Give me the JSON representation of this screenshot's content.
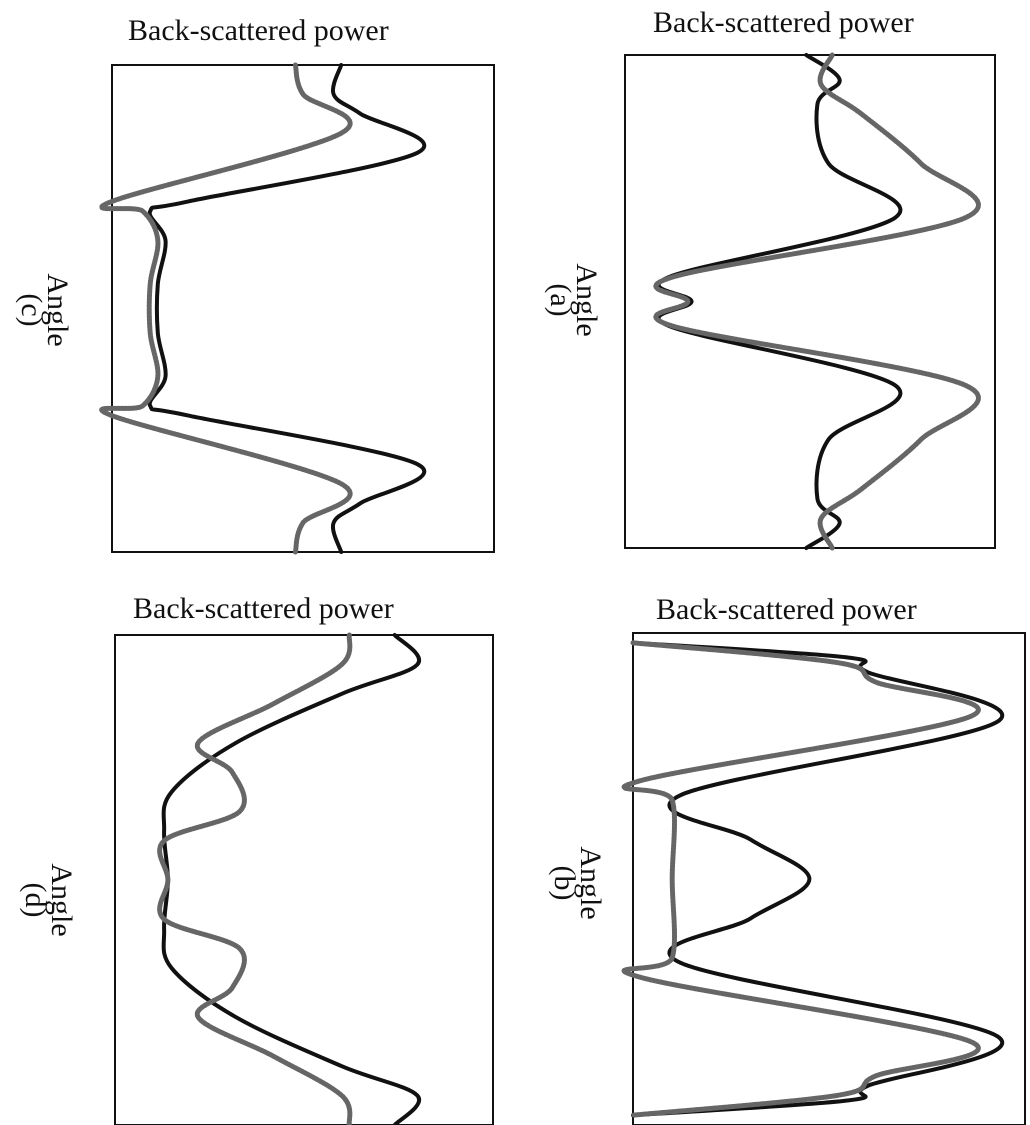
{
  "chart_data": [
    {
      "id": "a",
      "type": "line",
      "title": "Back-scattered power",
      "xlabel": "Angle",
      "panel_label": "(a)",
      "series": [
        {
          "style": "solid",
          "color": "#111111",
          "points": [
            [
              0.0,
              0.49
            ],
            [
              0.05,
              0.58
            ],
            [
              0.1,
              0.52
            ],
            [
              0.22,
              0.55
            ],
            [
              0.33,
              0.73
            ],
            [
              0.45,
              0.12
            ],
            [
              0.5,
              0.18
            ],
            [
              0.55,
              0.12
            ],
            [
              0.67,
              0.73
            ],
            [
              0.78,
              0.55
            ],
            [
              0.9,
              0.52
            ],
            [
              0.95,
              0.58
            ],
            [
              1.0,
              0.49
            ]
          ]
        },
        {
          "style": "dashed",
          "color": "#666666",
          "points": [
            [
              0.0,
              0.56
            ],
            [
              0.06,
              0.53
            ],
            [
              0.12,
              0.64
            ],
            [
              0.22,
              0.8
            ],
            [
              0.33,
              0.92
            ],
            [
              0.45,
              0.13
            ],
            [
              0.5,
              0.17
            ],
            [
              0.55,
              0.13
            ],
            [
              0.67,
              0.92
            ],
            [
              0.78,
              0.8
            ],
            [
              0.88,
              0.64
            ],
            [
              0.94,
              0.53
            ],
            [
              1.0,
              0.56
            ]
          ]
        }
      ]
    },
    {
      "id": "b",
      "type": "line",
      "title": "Back-scattered power",
      "xlabel": "Angle",
      "panel_label": "(b)",
      "series": [
        {
          "style": "solid",
          "color": "#111111",
          "points": [
            [
              0.02,
              0.0
            ],
            [
              0.05,
              0.55
            ],
            [
              0.08,
              0.6
            ],
            [
              0.18,
              0.93
            ],
            [
              0.33,
              0.12
            ],
            [
              0.42,
              0.3
            ],
            [
              0.5,
              0.45
            ],
            [
              0.58,
              0.3
            ],
            [
              0.67,
              0.12
            ],
            [
              0.82,
              0.93
            ],
            [
              0.92,
              0.6
            ],
            [
              0.95,
              0.55
            ],
            [
              0.98,
              0.0
            ]
          ]
        },
        {
          "style": "dashed",
          "color": "#666666",
          "points": [
            [
              0.02,
              0.0
            ],
            [
              0.06,
              0.52
            ],
            [
              0.1,
              0.62
            ],
            [
              0.17,
              0.86
            ],
            [
              0.3,
              0.02
            ],
            [
              0.34,
              0.1
            ],
            [
              0.5,
              0.1
            ],
            [
              0.66,
              0.1
            ],
            [
              0.7,
              0.02
            ],
            [
              0.83,
              0.86
            ],
            [
              0.9,
              0.62
            ],
            [
              0.94,
              0.52
            ],
            [
              0.98,
              0.0
            ]
          ]
        }
      ]
    },
    {
      "id": "c",
      "type": "line",
      "title": "Back-scattered power",
      "xlabel": "Angle",
      "panel_label": "(c)",
      "series": [
        {
          "style": "solid",
          "color": "#111111",
          "points": [
            [
              0.0,
              0.6
            ],
            [
              0.06,
              0.58
            ],
            [
              0.1,
              0.65
            ],
            [
              0.18,
              0.8
            ],
            [
              0.28,
              0.2
            ],
            [
              0.3,
              0.1
            ],
            [
              0.36,
              0.14
            ],
            [
              0.45,
              0.12
            ],
            [
              0.55,
              0.12
            ],
            [
              0.64,
              0.14
            ],
            [
              0.7,
              0.1
            ],
            [
              0.72,
              0.2
            ],
            [
              0.82,
              0.8
            ],
            [
              0.9,
              0.65
            ],
            [
              0.94,
              0.58
            ],
            [
              1.0,
              0.6
            ]
          ]
        },
        {
          "style": "dashed",
          "color": "#666666",
          "points": [
            [
              0.0,
              0.48
            ],
            [
              0.06,
              0.5
            ],
            [
              0.14,
              0.6
            ],
            [
              0.28,
              0.0
            ],
            [
              0.3,
              0.08
            ],
            [
              0.36,
              0.12
            ],
            [
              0.45,
              0.1
            ],
            [
              0.55,
              0.1
            ],
            [
              0.64,
              0.12
            ],
            [
              0.7,
              0.08
            ],
            [
              0.72,
              0.0
            ],
            [
              0.86,
              0.6
            ],
            [
              0.94,
              0.5
            ],
            [
              1.0,
              0.48
            ]
          ]
        }
      ]
    },
    {
      "id": "d",
      "type": "line",
      "title": "Back-scattered power",
      "xlabel": "Angle",
      "panel_label": "(d)",
      "series": [
        {
          "style": "solid",
          "color": "#111111",
          "points": [
            [
              0.0,
              0.74
            ],
            [
              0.06,
              0.8
            ],
            [
              0.12,
              0.6
            ],
            [
              0.22,
              0.32
            ],
            [
              0.32,
              0.15
            ],
            [
              0.4,
              0.13
            ],
            [
              0.5,
              0.14
            ],
            [
              0.6,
              0.13
            ],
            [
              0.68,
              0.15
            ],
            [
              0.78,
              0.32
            ],
            [
              0.88,
              0.6
            ],
            [
              0.94,
              0.8
            ],
            [
              1.0,
              0.74
            ]
          ]
        },
        {
          "style": "dashed",
          "color": "#666666",
          "points": [
            [
              0.0,
              0.62
            ],
            [
              0.06,
              0.6
            ],
            [
              0.14,
              0.42
            ],
            [
              0.22,
              0.22
            ],
            [
              0.28,
              0.31
            ],
            [
              0.36,
              0.33
            ],
            [
              0.42,
              0.13
            ],
            [
              0.5,
              0.14
            ],
            [
              0.58,
              0.13
            ],
            [
              0.64,
              0.33
            ],
            [
              0.72,
              0.31
            ],
            [
              0.78,
              0.22
            ],
            [
              0.86,
              0.42
            ],
            [
              0.94,
              0.6
            ],
            [
              1.0,
              0.62
            ]
          ]
        }
      ]
    }
  ]
}
